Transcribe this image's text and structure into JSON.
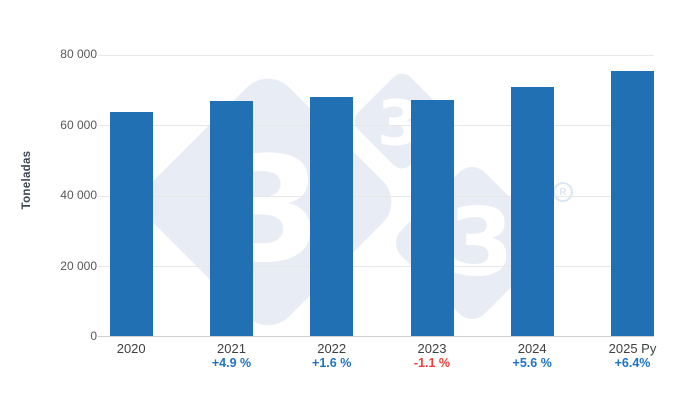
{
  "chart_data": {
    "type": "bar",
    "title": "",
    "xlabel": "",
    "ylabel": "Toneladas",
    "ylim": [
      0,
      80000
    ],
    "grid": true,
    "legend": false,
    "categories": [
      "2020",
      "2021",
      "2022",
      "2023",
      "2024",
      "2025 Py"
    ],
    "values": [
      63700,
      66821,
      67890,
      67143,
      70860,
      75395
    ],
    "growth_labels": [
      "",
      "+4.9 %",
      "+1.6 %",
      "-1.1 %",
      "+5.6 %",
      "+6.4%"
    ],
    "growth_types": [
      "",
      "positive",
      "positive",
      "negative",
      "positive",
      "positive"
    ],
    "y_ticks": [
      {
        "value": 80000,
        "label": "80 000"
      },
      {
        "value": 60000,
        "label": "60 000"
      },
      {
        "value": 40000,
        "label": "40 000"
      },
      {
        "value": 20000,
        "label": "20 000"
      },
      {
        "value": 0,
        "label": "0"
      }
    ]
  },
  "colors": {
    "bar": "#2170b4",
    "positive_label": "#1d73c6",
    "negative_label": "#ef403f",
    "grid_line": "#e7e7e7",
    "axis_line": "#cfd0d2",
    "tick_label": "#58585a",
    "category_label": "#3f4040",
    "axis_title": "#3d4852",
    "watermark": "#e8edf5"
  },
  "watermark": {
    "name": "3tres3-logo",
    "digit": "3",
    "registered_mark": "R"
  }
}
